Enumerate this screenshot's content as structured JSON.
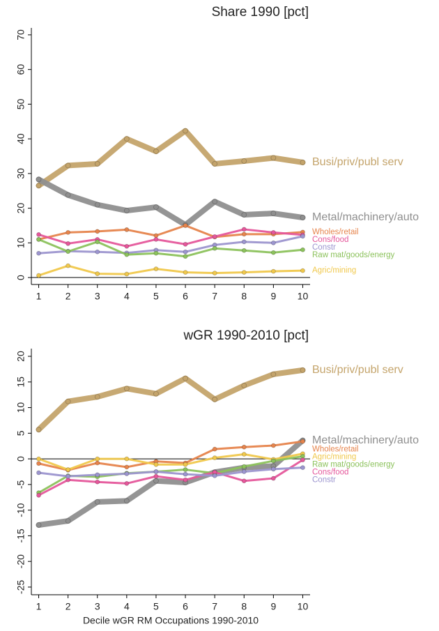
{
  "chart_data": [
    {
      "type": "line",
      "title": "Share 1990 [pct]",
      "x": [
        1,
        2,
        3,
        4,
        5,
        6,
        7,
        8,
        9,
        10
      ],
      "xlim": [
        0.75,
        10.25
      ],
      "xticks": [
        1,
        2,
        3,
        4,
        5,
        6,
        7,
        8,
        9,
        10
      ],
      "ylim": [
        -2,
        72
      ],
      "yticks": [
        0,
        10,
        20,
        30,
        40,
        50,
        60,
        70
      ],
      "reference_line": 0,
      "series": [
        {
          "name": "Busi/priv/publ serv",
          "color": "#c4a46b",
          "width": 8,
          "values": [
            26.5,
            32.3,
            32.8,
            40,
            36.4,
            42.3,
            32.8,
            33.6,
            34.5,
            33.2
          ]
        },
        {
          "name": "Metal/machinery/auto",
          "color": "#8f8f8f",
          "width": 8,
          "values": [
            28.3,
            23.8,
            21,
            19.3,
            20.3,
            15.2,
            21.9,
            18.1,
            18.5,
            17.3
          ]
        },
        {
          "name": "Wholes/retail",
          "color": "#e6844c",
          "width": 3,
          "values": [
            11,
            13,
            13.3,
            13.8,
            12.1,
            15,
            11.7,
            12.5,
            12.5,
            13.1
          ]
        },
        {
          "name": "Cons/food",
          "color": "#e5579b",
          "width": 3,
          "values": [
            12.4,
            9.8,
            11,
            9,
            11,
            9.6,
            11.8,
            13.9,
            13,
            12.3
          ]
        },
        {
          "name": "Constr",
          "color": "#9c95cf",
          "width": 3,
          "values": [
            7,
            7.6,
            7.4,
            7.1,
            7.9,
            7.4,
            9.4,
            10.3,
            10,
            11.9
          ]
        },
        {
          "name": "Raw mat/goods/energy",
          "color": "#8cc25c",
          "width": 3,
          "values": [
            11,
            7.5,
            10.3,
            6.6,
            7,
            6.1,
            8.4,
            7.8,
            7.2,
            8
          ]
        },
        {
          "name": "Agric/mining",
          "color": "#f0c84c",
          "width": 3,
          "values": [
            0.6,
            3.4,
            1.1,
            1,
            2.5,
            1.5,
            1.3,
            1.5,
            1.8,
            2
          ]
        }
      ]
    },
    {
      "type": "line",
      "title": "wGR 1990-2010 [pct]",
      "x_label": "Decile wGR RM Occupations 1990-2010",
      "x": [
        1,
        2,
        3,
        4,
        5,
        6,
        7,
        8,
        9,
        10
      ],
      "xlim": [
        0.75,
        10.25
      ],
      "xticks": [
        1,
        2,
        3,
        4,
        5,
        6,
        7,
        8,
        9,
        10
      ],
      "ylim": [
        -26.5,
        21.5
      ],
      "yticks": [
        -25,
        -20,
        -15,
        -10,
        -5,
        0,
        5,
        10,
        15,
        20
      ],
      "reference_line": 0,
      "series": [
        {
          "name": "Busi/priv/publ serv",
          "color": "#c4a46b",
          "width": 8,
          "values": [
            5.7,
            11.2,
            12.1,
            13.7,
            12.7,
            15.7,
            11.6,
            14.3,
            16.5,
            17.3
          ]
        },
        {
          "name": "Metal/machinery/auto",
          "color": "#8f8f8f",
          "width": 8,
          "values": [
            -12.9,
            -12.1,
            -8.4,
            -8.2,
            -4.3,
            -4.6,
            -2.6,
            -1.7,
            -1.4,
            3.6
          ]
        },
        {
          "name": "Wholes/retail",
          "color": "#e6844c",
          "width": 3,
          "values": [
            -0.9,
            -2.2,
            -0.8,
            -1.6,
            -0.5,
            -0.8,
            1.9,
            2.3,
            2.6,
            3.4
          ]
        },
        {
          "name": "Agric/mining",
          "color": "#f0c84c",
          "width": 3,
          "values": [
            0,
            -2.1,
            0,
            0,
            -1.1,
            -1.1,
            0.2,
            0.9,
            -0.1,
            1
          ]
        },
        {
          "name": "Raw mat/goods/energy",
          "color": "#8cc25c",
          "width": 3,
          "values": [
            -6.6,
            -3.3,
            -3.5,
            -2.8,
            -2.5,
            -2.1,
            -2.8,
            -1.5,
            -0.4,
            0.5
          ]
        },
        {
          "name": "Cons/food",
          "color": "#e5579b",
          "width": 3,
          "values": [
            -7.1,
            -4.1,
            -4.5,
            -4.8,
            -3.4,
            -4.1,
            -2.6,
            -4.3,
            -3.8,
            -0.2
          ]
        },
        {
          "name": "Constr",
          "color": "#9c95cf",
          "width": 3,
          "values": [
            -2.7,
            -3.4,
            -3.1,
            -2.9,
            -2.5,
            -3,
            -3.3,
            -2.5,
            -2,
            -1.7
          ]
        }
      ]
    }
  ]
}
